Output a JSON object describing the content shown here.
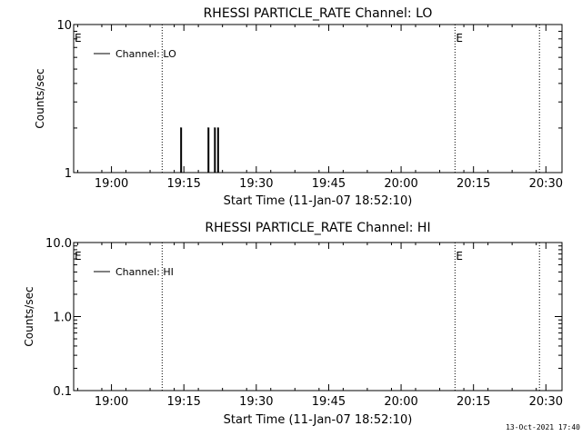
{
  "footer": {
    "timestamp": "13-Oct-2021 17:40"
  },
  "chart_data": [
    {
      "type": "line",
      "title": "RHESSI PARTICLE_RATE Channel: LO",
      "xlabel": "Start Time (11-Jan-07 18:52:10)",
      "ylabel": "Counts/sec",
      "yscale": "log",
      "ylim": [
        1,
        10
      ],
      "yticks": [
        1,
        10
      ],
      "ytick_labels": [
        "1",
        "10"
      ],
      "xlim": [
        "18:52:10",
        "20:33:20"
      ],
      "xticks": [
        "19:00",
        "19:15",
        "19:30",
        "19:45",
        "20:00",
        "20:15",
        "20:30"
      ],
      "legend": {
        "position": "top-left"
      },
      "series": [
        {
          "name": "Channel: LO",
          "x": [
            "19:14:00",
            "19:14:20",
            "19:14:40",
            "19:19:40",
            "19:20:00",
            "19:20:20",
            "19:21:00",
            "19:21:20",
            "19:21:40",
            "19:22:00",
            "19:22:20"
          ],
          "y": [
            1,
            2,
            1,
            1,
            2,
            1,
            1,
            2,
            1,
            2,
            1
          ]
        }
      ],
      "markers": [
        {
          "time": "19:10:30",
          "label": ""
        },
        {
          "time": "20:11:10",
          "label": "E"
        },
        {
          "time": "20:28:40",
          "label": ""
        }
      ],
      "edge_labels": [
        "E"
      ]
    },
    {
      "type": "line",
      "title": "RHESSI PARTICLE_RATE Channel: HI",
      "xlabel": "Start Time (11-Jan-07 18:52:10)",
      "ylabel": "Counts/sec",
      "yscale": "log",
      "ylim": [
        0.1,
        10
      ],
      "yticks": [
        0.1,
        1,
        10
      ],
      "ytick_labels": [
        "0.1",
        "1.0",
        "10.0"
      ],
      "xlim": [
        "18:52:10",
        "20:33:20"
      ],
      "xticks": [
        "19:00",
        "19:15",
        "19:30",
        "19:45",
        "20:00",
        "20:15",
        "20:30"
      ],
      "legend": {
        "position": "top-left"
      },
      "series": [
        {
          "name": "Channel: HI",
          "x": [],
          "y": []
        }
      ],
      "markers": [
        {
          "time": "19:10:30",
          "label": ""
        },
        {
          "time": "20:11:10",
          "label": "E"
        },
        {
          "time": "20:28:40",
          "label": ""
        }
      ],
      "edge_labels": [
        "E"
      ]
    }
  ]
}
